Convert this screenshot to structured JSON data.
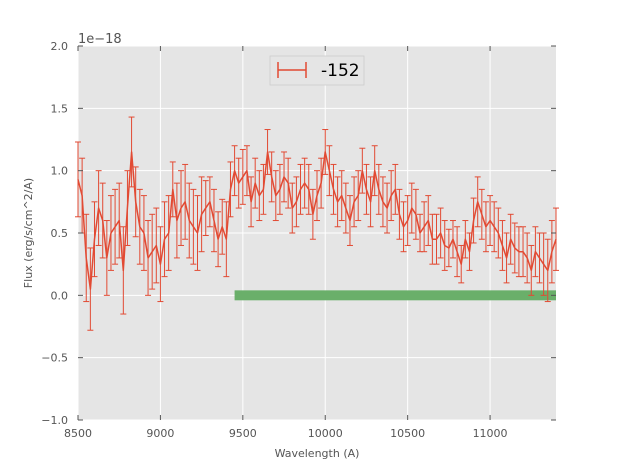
{
  "colors": {
    "axes_bg": "#E5E5E5",
    "grid": "#FFFFFF",
    "series": "#E24A33",
    "band": "#348ABD",
    "band_fill": "#6AAF6A",
    "tick_color": "#555555"
  },
  "chart_data": {
    "type": "line",
    "title": "",
    "xlabel": "Wavelength (A)",
    "ylabel": "Flux (erg/s/cm^2/A)",
    "y_offset_label": "1e−18",
    "xlim": [
      8500,
      11400
    ],
    "ylim": [
      -1.0,
      2.0
    ],
    "x_ticks": [
      8500,
      9000,
      9500,
      10000,
      10500,
      11000
    ],
    "x_tick_labels": [
      "8500",
      "9000",
      "9500",
      "10000",
      "10500",
      "11000"
    ],
    "y_ticks": [
      -1.0,
      -0.5,
      0.0,
      0.5,
      1.0,
      1.5,
      2.0
    ],
    "y_tick_labels": [
      "−1.0",
      "−0.5",
      "0.0",
      "0.5",
      "1.0",
      "1.5",
      "2.0"
    ],
    "grid": true,
    "legend_placement": "upper-center",
    "series": [
      {
        "name": "-152",
        "x": [
          8500,
          8525,
          8550,
          8575,
          8600,
          8625,
          8650,
          8675,
          8700,
          8725,
          8750,
          8775,
          8800,
          8825,
          8850,
          8875,
          8900,
          8925,
          8950,
          8975,
          9000,
          9025,
          9050,
          9075,
          9100,
          9125,
          9150,
          9175,
          9200,
          9225,
          9250,
          9275,
          9300,
          9325,
          9350,
          9375,
          9400,
          9425,
          9450,
          9475,
          9500,
          9525,
          9550,
          9575,
          9600,
          9625,
          9650,
          9675,
          9700,
          9725,
          9750,
          9775,
          9800,
          9825,
          9850,
          9875,
          9900,
          9925,
          9950,
          9975,
          10000,
          10025,
          10050,
          10075,
          10100,
          10125,
          10150,
          10175,
          10200,
          10225,
          10250,
          10275,
          10300,
          10325,
          10350,
          10375,
          10400,
          10425,
          10450,
          10475,
          10500,
          10525,
          10550,
          10575,
          10600,
          10625,
          10650,
          10675,
          10700,
          10725,
          10750,
          10775,
          10800,
          10825,
          10850,
          10875,
          10900,
          10925,
          10950,
          10975,
          11000,
          11025,
          11050,
          11075,
          11100,
          11125,
          11150,
          11175,
          11200,
          11225,
          11250,
          11275,
          11300,
          11325,
          11350,
          11375,
          11400
        ],
        "y": [
          0.93,
          0.8,
          0.3,
          0.05,
          0.45,
          0.7,
          0.6,
          0.3,
          0.5,
          0.55,
          0.6,
          0.2,
          0.7,
          1.15,
          0.75,
          0.55,
          0.5,
          0.3,
          0.35,
          0.4,
          0.25,
          0.45,
          0.5,
          0.85,
          0.6,
          0.7,
          0.75,
          0.6,
          0.55,
          0.5,
          0.65,
          0.7,
          0.75,
          0.6,
          0.45,
          0.55,
          0.45,
          0.85,
          1.0,
          0.9,
          0.95,
          1.0,
          0.75,
          0.9,
          0.8,
          0.85,
          1.15,
          0.95,
          0.8,
          0.85,
          0.95,
          0.9,
          0.7,
          0.75,
          0.85,
          0.9,
          0.85,
          0.65,
          0.8,
          0.9,
          1.15,
          1.0,
          0.85,
          0.75,
          0.8,
          0.7,
          0.6,
          0.75,
          0.8,
          1.0,
          0.85,
          0.75,
          1.0,
          0.85,
          0.75,
          0.7,
          0.8,
          0.85,
          0.65,
          0.55,
          0.6,
          0.7,
          0.65,
          0.5,
          0.55,
          0.6,
          0.45,
          0.45,
          0.5,
          0.4,
          0.38,
          0.45,
          0.35,
          0.25,
          0.45,
          0.35,
          0.6,
          0.75,
          0.65,
          0.55,
          0.6,
          0.55,
          0.5,
          0.4,
          0.3,
          0.45,
          0.38,
          0.35,
          0.35,
          0.3,
          0.2,
          0.35,
          0.3,
          0.25,
          0.2,
          0.35,
          0.45
        ],
        "yerr": [
          0.3,
          0.3,
          0.35,
          0.33,
          0.3,
          0.3,
          0.3,
          0.3,
          0.3,
          0.3,
          0.3,
          0.35,
          0.3,
          0.28,
          0.28,
          0.3,
          0.3,
          0.3,
          0.3,
          0.3,
          0.3,
          0.3,
          0.3,
          0.22,
          0.3,
          0.3,
          0.3,
          0.3,
          0.3,
          0.3,
          0.3,
          0.22,
          0.2,
          0.25,
          0.22,
          0.22,
          0.3,
          0.22,
          0.2,
          0.2,
          0.22,
          0.2,
          0.2,
          0.2,
          0.2,
          0.2,
          0.18,
          0.2,
          0.2,
          0.2,
          0.2,
          0.2,
          0.2,
          0.2,
          0.2,
          0.2,
          0.2,
          0.2,
          0.2,
          0.2,
          0.18,
          0.2,
          0.2,
          0.2,
          0.2,
          0.2,
          0.2,
          0.2,
          0.2,
          0.18,
          0.2,
          0.2,
          0.2,
          0.2,
          0.2,
          0.2,
          0.2,
          0.2,
          0.2,
          0.2,
          0.2,
          0.2,
          0.2,
          0.15,
          0.2,
          0.2,
          0.2,
          0.2,
          0.2,
          0.2,
          0.15,
          0.15,
          0.2,
          0.15,
          0.15,
          0.15,
          0.18,
          0.2,
          0.2,
          0.2,
          0.2,
          0.2,
          0.2,
          0.2,
          0.2,
          0.2,
          0.2,
          0.2,
          0.2,
          0.2,
          0.2,
          0.2,
          0.2,
          0.25,
          0.25,
          0.25,
          0.25
        ]
      }
    ],
    "band": {
      "x_start": 9450,
      "x_end": 11400,
      "y_low": -0.04,
      "y_high": 0.04
    }
  }
}
